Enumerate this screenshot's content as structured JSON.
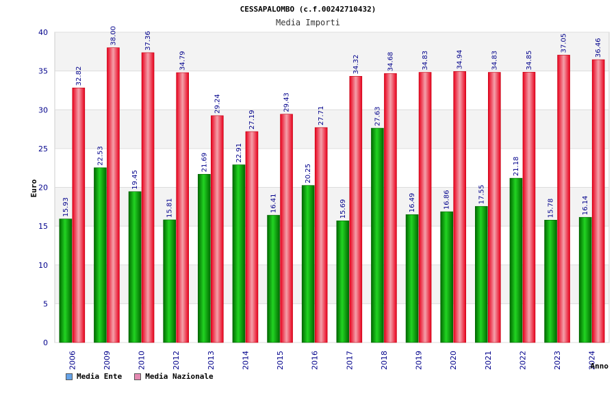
{
  "chart_data": {
    "type": "bar",
    "title": "CESSAPALOMBO (c.f.00242710432)",
    "subtitle": "Media Importi",
    "xlabel": "Anno",
    "ylabel": "Euro",
    "ylim": [
      0,
      40
    ],
    "yticks": [
      0,
      5,
      10,
      15,
      20,
      25,
      30,
      35,
      40
    ],
    "categories": [
      "2006",
      "2009",
      "2010",
      "2012",
      "2013",
      "2014",
      "2015",
      "2016",
      "2017",
      "2018",
      "2019",
      "2020",
      "2021",
      "2022",
      "2023",
      "2024"
    ],
    "series": [
      {
        "name": "Media Ente",
        "values": [
          15.93,
          22.53,
          19.45,
          15.81,
          21.69,
          22.91,
          16.41,
          20.25,
          15.69,
          27.63,
          16.49,
          16.86,
          17.55,
          21.18,
          15.78,
          16.14
        ],
        "labels": [
          "15.93",
          "22.53",
          "19.45",
          "15.81",
          "21.69",
          "22.91",
          "16.41",
          "20.25",
          "15.69",
          "27.63",
          "16.49",
          "16.86",
          "17.55",
          "21.18",
          "15.78",
          "16.14"
        ],
        "color": "#00b000",
        "legend_color": "#66a3e8"
      },
      {
        "name": "Media Nazionale",
        "values": [
          32.82,
          38.0,
          37.36,
          34.79,
          29.24,
          27.19,
          29.43,
          27.71,
          34.32,
          34.68,
          34.83,
          34.94,
          34.83,
          34.85,
          37.05,
          36.46
        ],
        "labels": [
          "32.82",
          "38.00",
          "37.36",
          "34.79",
          "29.24",
          "27.19",
          "29.43",
          "27.71",
          "34.32",
          "34.68",
          "34.83",
          "34.94",
          "34.83",
          "34.85",
          "37.05",
          "36.46"
        ],
        "color": "#e8001c",
        "legend_color": "#e58ab2"
      }
    ],
    "grid": true,
    "legend_position": "bottom-left"
  }
}
